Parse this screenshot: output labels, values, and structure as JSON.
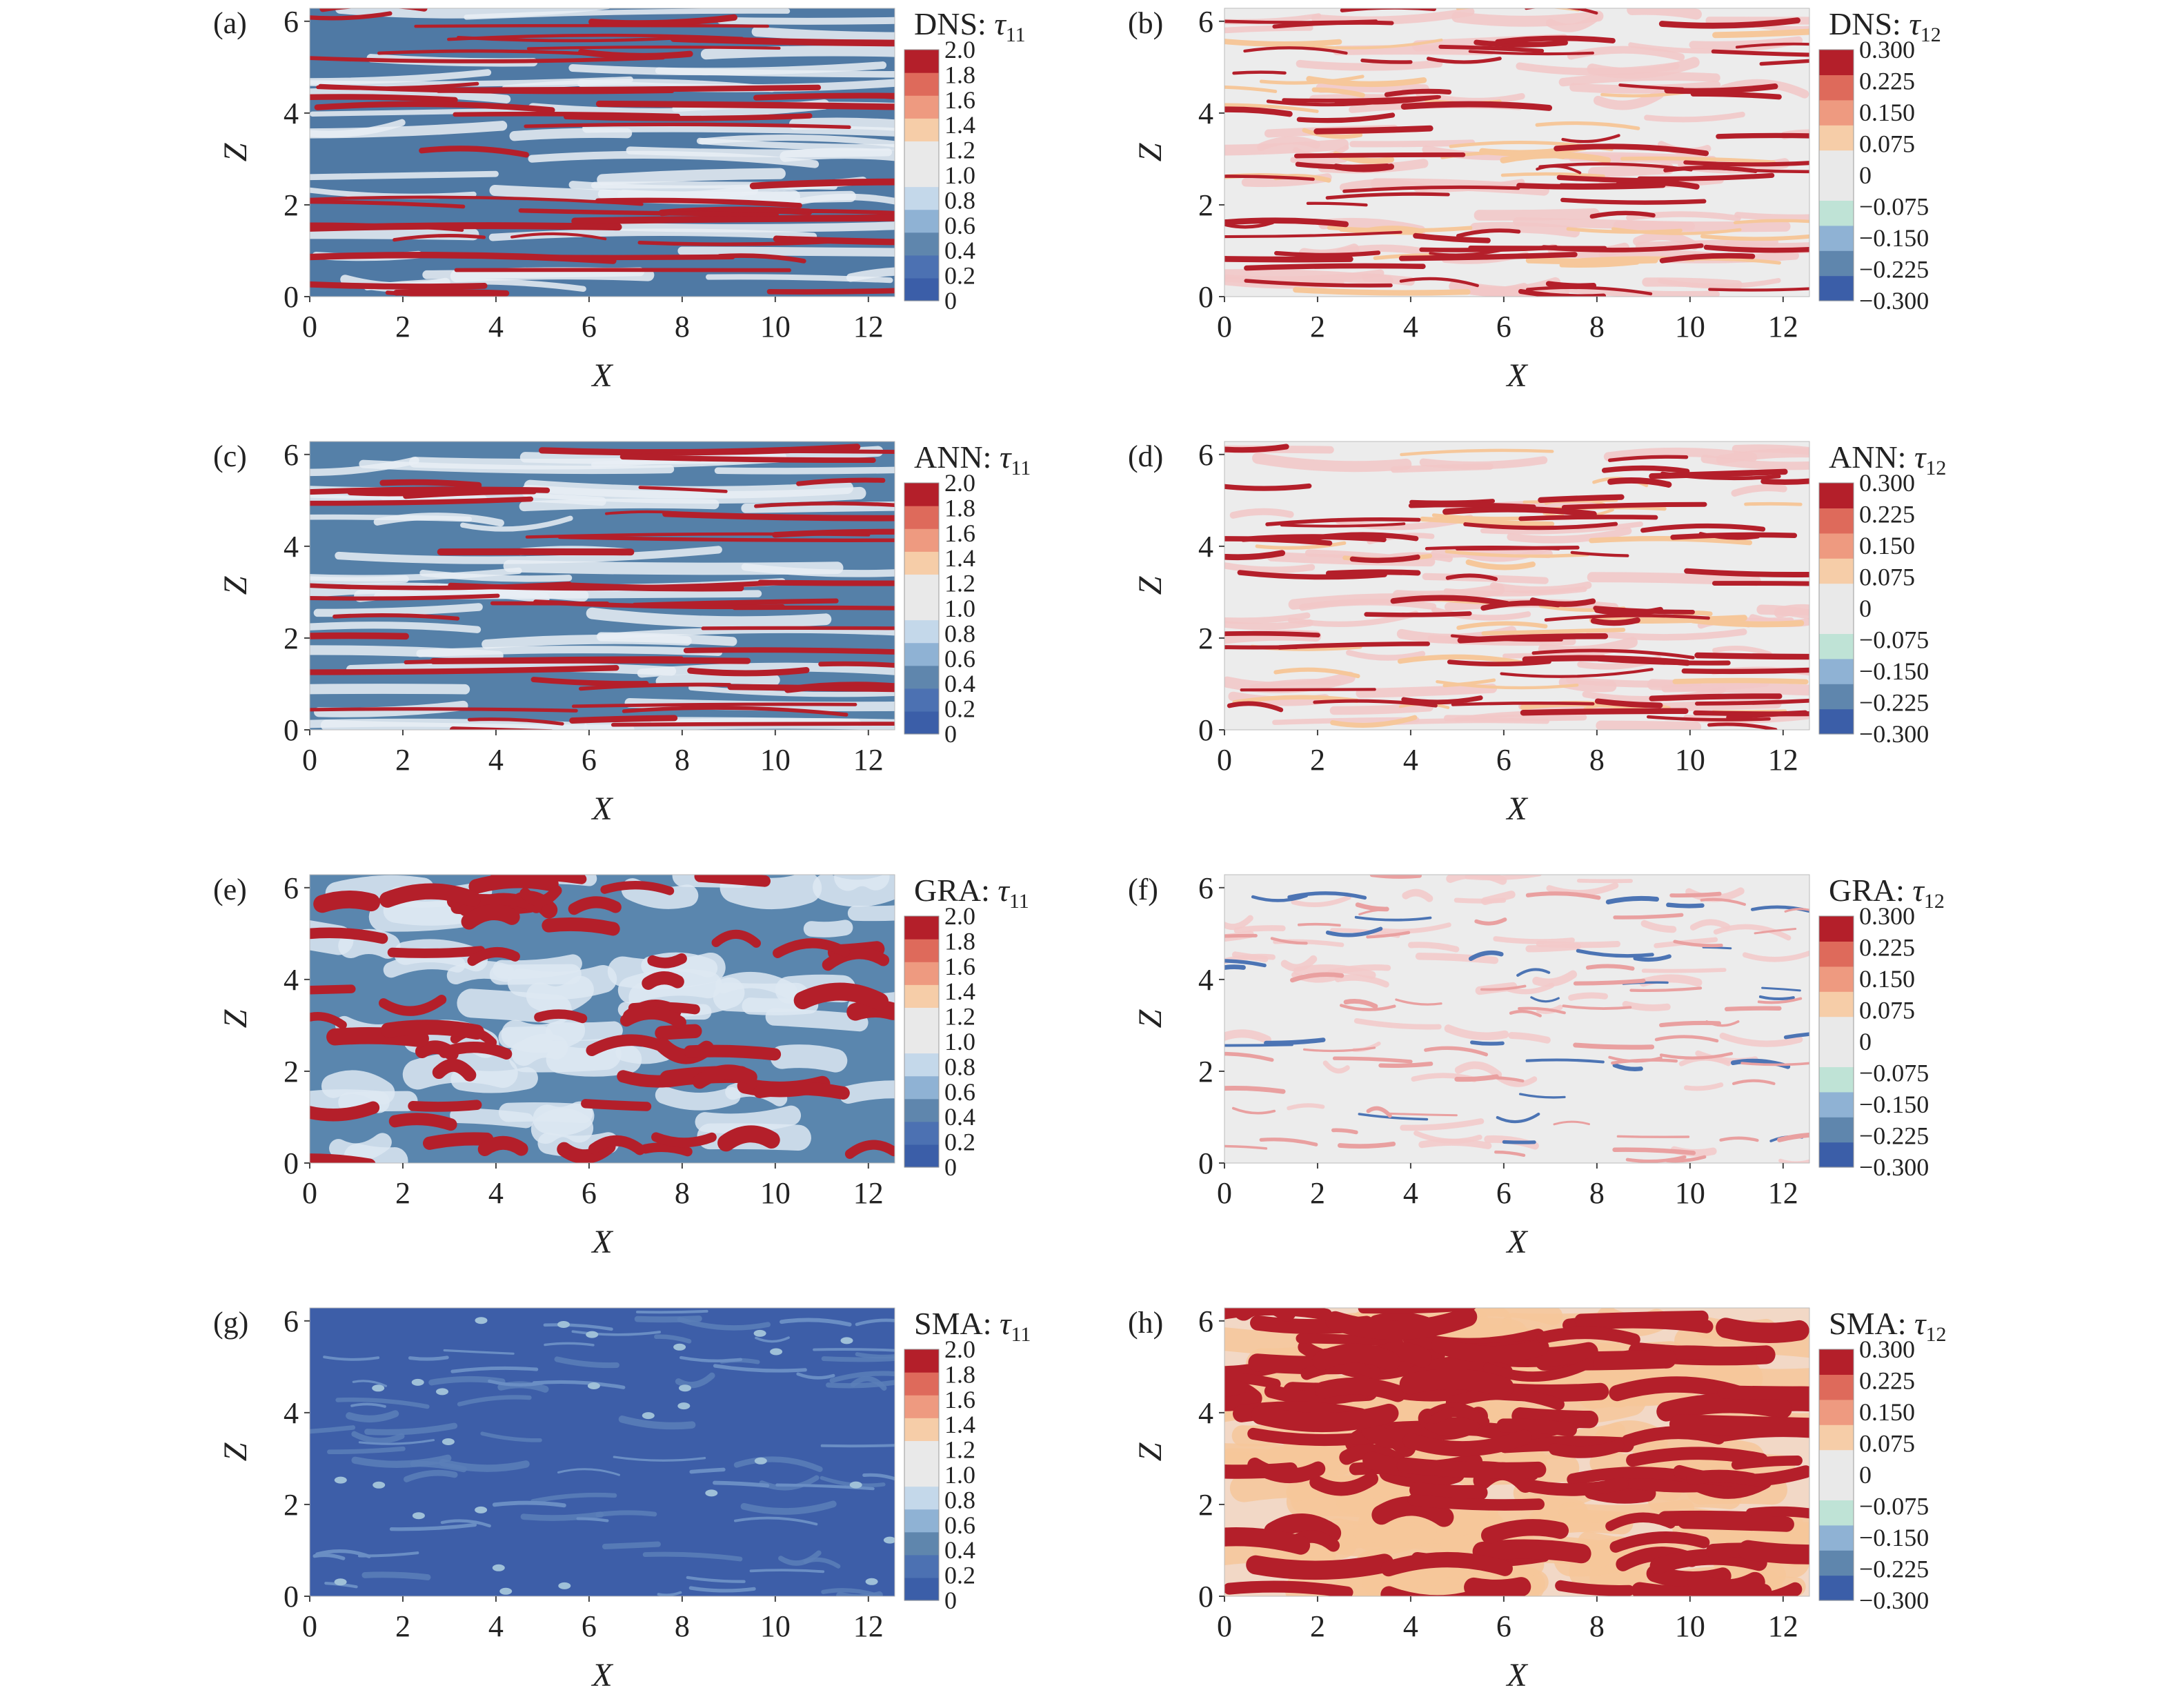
{
  "chart_data": [
    {
      "type": "heatmap",
      "panel_label": "(a)",
      "title_prefix": "DNS: ",
      "title_symbol": "τ",
      "title_subscript": "11",
      "xlabel": "X",
      "ylabel": "Z",
      "xlim": [
        0,
        12.566
      ],
      "ylim": [
        0,
        6.283
      ],
      "x_ticks": [
        "0",
        "2",
        "4",
        "6",
        "8",
        "10",
        "12"
      ],
      "y_ticks": [
        "0",
        "2",
        "4",
        "6"
      ],
      "colorbar_ticks": [
        "0",
        "0.2",
        "0.4",
        "0.6",
        "0.8",
        "1.0",
        "1.2",
        "1.4",
        "1.6",
        "1.8",
        "2.0"
      ],
      "colorbar_colors": [
        "#3b5ea8",
        "#4c71b2",
        "#5f86ad",
        "#8fb2d4",
        "#c4d8ea",
        "#e9e9e9",
        "#e9e9e9",
        "#f6cda8",
        "#ee9a80",
        "#de6a5b",
        "#b41f2a"
      ]
    },
    {
      "type": "heatmap",
      "panel_label": "(b)",
      "title_prefix": "DNS: ",
      "title_symbol": "τ",
      "title_subscript": "12",
      "xlabel": "X",
      "ylabel": "Z",
      "xlim": [
        0,
        12.566
      ],
      "ylim": [
        0,
        6.283
      ],
      "x_ticks": [
        "0",
        "2",
        "4",
        "6",
        "8",
        "10",
        "12"
      ],
      "y_ticks": [
        "0",
        "2",
        "4",
        "6"
      ],
      "colorbar_ticks": [
        "−0.300",
        "−0.225",
        "−0.150",
        "−0.075",
        "0",
        "0.075",
        "0.150",
        "0.225",
        "0.300"
      ],
      "colorbar_colors": [
        "#3b5ea8",
        "#5f86ad",
        "#8fb2d4",
        "#bfe3d6",
        "#e9e9e9",
        "#e9e9e9",
        "#f6cda8",
        "#ee9a80",
        "#de6a5b",
        "#b41f2a"
      ]
    },
    {
      "type": "heatmap",
      "panel_label": "(c)",
      "title_prefix": "ANN: ",
      "title_symbol": "τ",
      "title_subscript": "11",
      "xlabel": "X",
      "ylabel": "Z",
      "xlim": [
        0,
        12.566
      ],
      "ylim": [
        0,
        6.283
      ],
      "x_ticks": [
        "0",
        "2",
        "4",
        "6",
        "8",
        "10",
        "12"
      ],
      "y_ticks": [
        "0",
        "2",
        "4",
        "6"
      ],
      "colorbar_ticks": [
        "0",
        "0.2",
        "0.4",
        "0.6",
        "0.8",
        "1.0",
        "1.2",
        "1.4",
        "1.6",
        "1.8",
        "2.0"
      ],
      "colorbar_colors": [
        "#3b5ea8",
        "#4c71b2",
        "#5f86ad",
        "#8fb2d4",
        "#c4d8ea",
        "#e9e9e9",
        "#e9e9e9",
        "#f6cda8",
        "#ee9a80",
        "#de6a5b",
        "#b41f2a"
      ]
    },
    {
      "type": "heatmap",
      "panel_label": "(d)",
      "title_prefix": "ANN: ",
      "title_symbol": "τ",
      "title_subscript": "12",
      "xlabel": "X",
      "ylabel": "Z",
      "xlim": [
        0,
        12.566
      ],
      "ylim": [
        0,
        6.283
      ],
      "x_ticks": [
        "0",
        "2",
        "4",
        "6",
        "8",
        "10",
        "12"
      ],
      "y_ticks": [
        "0",
        "2",
        "4",
        "6"
      ],
      "colorbar_ticks": [
        "−0.300",
        "−0.225",
        "−0.150",
        "−0.075",
        "0",
        "0.075",
        "0.150",
        "0.225",
        "0.300"
      ],
      "colorbar_colors": [
        "#3b5ea8",
        "#5f86ad",
        "#8fb2d4",
        "#bfe3d6",
        "#e9e9e9",
        "#e9e9e9",
        "#f6cda8",
        "#ee9a80",
        "#de6a5b",
        "#b41f2a"
      ]
    },
    {
      "type": "heatmap",
      "panel_label": "(e)",
      "title_prefix": "GRA: ",
      "title_symbol": "τ",
      "title_subscript": "11",
      "xlabel": "X",
      "ylabel": "Z",
      "xlim": [
        0,
        12.566
      ],
      "ylim": [
        0,
        6.283
      ],
      "x_ticks": [
        "0",
        "2",
        "4",
        "6",
        "8",
        "10",
        "12"
      ],
      "y_ticks": [
        "0",
        "2",
        "4",
        "6"
      ],
      "colorbar_ticks": [
        "0",
        "0.2",
        "0.4",
        "0.6",
        "0.8",
        "1.0",
        "1.2",
        "1.4",
        "1.6",
        "1.8",
        "2.0"
      ],
      "colorbar_colors": [
        "#3b5ea8",
        "#4c71b2",
        "#5f86ad",
        "#8fb2d4",
        "#c4d8ea",
        "#e9e9e9",
        "#e9e9e9",
        "#f6cda8",
        "#ee9a80",
        "#de6a5b",
        "#b41f2a"
      ]
    },
    {
      "type": "heatmap",
      "panel_label": "(f)",
      "title_prefix": "GRA: ",
      "title_symbol": "τ",
      "title_subscript": "12",
      "xlabel": "X",
      "ylabel": "Z",
      "xlim": [
        0,
        12.566
      ],
      "ylim": [
        0,
        6.283
      ],
      "x_ticks": [
        "0",
        "2",
        "4",
        "6",
        "8",
        "10",
        "12"
      ],
      "y_ticks": [
        "0",
        "2",
        "4",
        "6"
      ],
      "colorbar_ticks": [
        "−0.300",
        "−0.225",
        "−0.150",
        "−0.075",
        "0",
        "0.075",
        "0.150",
        "0.225",
        "0.300"
      ],
      "colorbar_colors": [
        "#3b5ea8",
        "#5f86ad",
        "#8fb2d4",
        "#bfe3d6",
        "#e9e9e9",
        "#e9e9e9",
        "#f6cda8",
        "#ee9a80",
        "#de6a5b",
        "#b41f2a"
      ]
    },
    {
      "type": "heatmap",
      "panel_label": "(g)",
      "title_prefix": "SMA: ",
      "title_symbol": "τ",
      "title_subscript": "11",
      "xlabel": "X",
      "ylabel": "Z",
      "xlim": [
        0,
        12.566
      ],
      "ylim": [
        0,
        6.283
      ],
      "x_ticks": [
        "0",
        "2",
        "4",
        "6",
        "8",
        "10",
        "12"
      ],
      "y_ticks": [
        "0",
        "2",
        "4",
        "6"
      ],
      "colorbar_ticks": [
        "0",
        "0.2",
        "0.4",
        "0.6",
        "0.8",
        "1.0",
        "1.2",
        "1.4",
        "1.6",
        "1.8",
        "2.0"
      ],
      "colorbar_colors": [
        "#3b5ea8",
        "#4c71b2",
        "#5f86ad",
        "#8fb2d4",
        "#c4d8ea",
        "#e9e9e9",
        "#e9e9e9",
        "#f6cda8",
        "#ee9a80",
        "#de6a5b",
        "#b41f2a"
      ]
    },
    {
      "type": "heatmap",
      "panel_label": "(h)",
      "title_prefix": "SMA: ",
      "title_symbol": "τ",
      "title_subscript": "12",
      "xlabel": "X",
      "ylabel": "Z",
      "xlim": [
        0,
        12.566
      ],
      "ylim": [
        0,
        6.283
      ],
      "x_ticks": [
        "0",
        "2",
        "4",
        "6",
        "8",
        "10",
        "12"
      ],
      "y_ticks": [
        "0",
        "2",
        "4",
        "6"
      ],
      "colorbar_ticks": [
        "−0.300",
        "−0.225",
        "−0.150",
        "−0.075",
        "0",
        "0.075",
        "0.150",
        "0.225",
        "0.300"
      ],
      "colorbar_colors": [
        "#3b5ea8",
        "#5f86ad",
        "#8fb2d4",
        "#bfe3d6",
        "#e9e9e9",
        "#e9e9e9",
        "#f6cda8",
        "#ee9a80",
        "#de6a5b",
        "#b41f2a"
      ]
    }
  ]
}
